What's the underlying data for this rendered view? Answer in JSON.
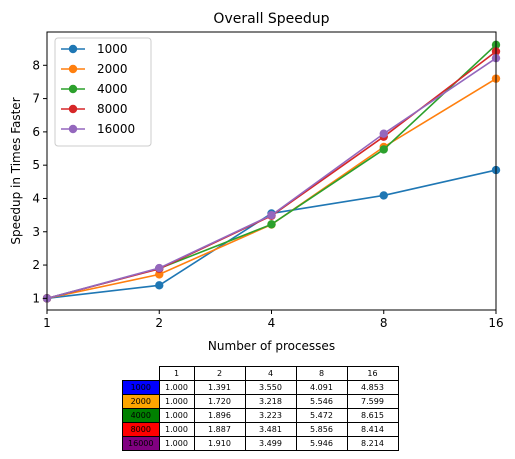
{
  "chart_data": {
    "type": "line",
    "title": "Overall Speedup",
    "xlabel": "Number of processes",
    "ylabel": "Speedup in Times Faster",
    "x_scale": "log2",
    "x": [
      1,
      2,
      4,
      8,
      16
    ],
    "x_tick_labels": [
      "1",
      "2",
      "4",
      "8",
      "16"
    ],
    "xlim": [
      1,
      16
    ],
    "ylim": [
      0.65,
      9.0
    ],
    "y_ticks": [
      1,
      2,
      3,
      4,
      5,
      6,
      7,
      8
    ],
    "y_tick_labels": [
      "1",
      "2",
      "3",
      "4",
      "5",
      "6",
      "7",
      "8"
    ],
    "grid": false,
    "legend_position": "top-left",
    "series": [
      {
        "name": "1000",
        "color": "#1f77b4",
        "values": [
          1.0,
          1.391,
          3.55,
          4.091,
          4.853
        ]
      },
      {
        "name": "2000",
        "color": "#ff7f0e",
        "values": [
          1.0,
          1.72,
          3.218,
          5.546,
          7.599
        ]
      },
      {
        "name": "4000",
        "color": "#2ca02c",
        "values": [
          1.0,
          1.896,
          3.223,
          5.472,
          8.615
        ]
      },
      {
        "name": "8000",
        "color": "#d62728",
        "values": [
          1.0,
          1.887,
          3.481,
          5.856,
          8.414
        ]
      },
      {
        "name": "16000",
        "color": "#9467bd",
        "values": [
          1.0,
          1.91,
          3.499,
          5.946,
          8.214
        ]
      }
    ]
  },
  "table": {
    "col_headers": [
      "1",
      "2",
      "4",
      "8",
      "16"
    ],
    "rows": [
      {
        "label": "1000",
        "color": "#0000ff",
        "cells": [
          "1.000",
          "1.391",
          "3.550",
          "4.091",
          "4.853"
        ]
      },
      {
        "label": "2000",
        "color": "#ffa500",
        "cells": [
          "1.000",
          "1.720",
          "3.218",
          "5.546",
          "7.599"
        ]
      },
      {
        "label": "4000",
        "color": "#008000",
        "cells": [
          "1.000",
          "1.896",
          "3.223",
          "5.472",
          "8.615"
        ]
      },
      {
        "label": "8000",
        "color": "#ff0000",
        "cells": [
          "1.000",
          "1.887",
          "3.481",
          "5.856",
          "8.414"
        ]
      },
      {
        "label": "16000",
        "color": "#800080",
        "cells": [
          "1.000",
          "1.910",
          "3.499",
          "5.946",
          "8.214"
        ]
      }
    ]
  }
}
